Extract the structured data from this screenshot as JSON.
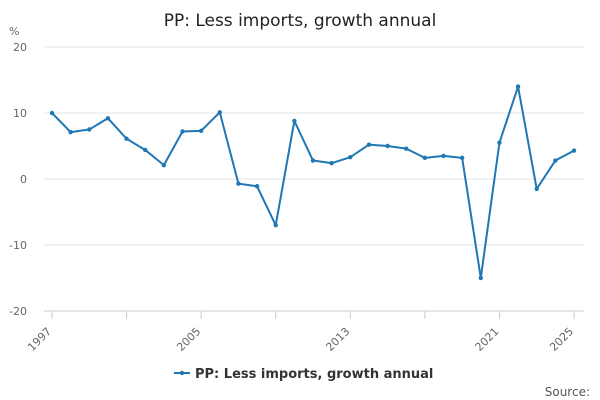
{
  "chart_data": {
    "type": "line",
    "title": "PP: Less imports, growth annual",
    "ylabel": "%",
    "ylim": [
      -20,
      20
    ],
    "yticks": [
      -20,
      -10,
      0,
      10,
      20
    ],
    "xlim": [
      1997,
      2025
    ],
    "xticks_labeled": [
      "1997",
      "2005",
      "2013",
      "2021",
      "2025"
    ],
    "x": [
      1997,
      1998,
      1999,
      2000,
      2001,
      2002,
      2003,
      2004,
      2005,
      2006,
      2007,
      2008,
      2009,
      2010,
      2011,
      2012,
      2013,
      2014,
      2015,
      2016,
      2017,
      2018,
      2019,
      2020,
      2021,
      2022,
      2023,
      2024,
      2025
    ],
    "series": [
      {
        "name": "PP: Less imports, growth annual",
        "color": "#1f77b4",
        "values": [
          10.0,
          7.1,
          7.5,
          9.2,
          6.1,
          4.4,
          2.1,
          7.2,
          7.3,
          10.1,
          -0.7,
          -1.1,
          -7.0,
          8.8,
          2.8,
          2.4,
          3.3,
          5.2,
          5.0,
          4.6,
          3.2,
          3.5,
          3.2,
          -15.0,
          5.5,
          14.0,
          -1.5,
          2.8,
          4.3
        ]
      }
    ],
    "grid": true,
    "legend_position": "bottom-center",
    "source_label": "Source:"
  }
}
